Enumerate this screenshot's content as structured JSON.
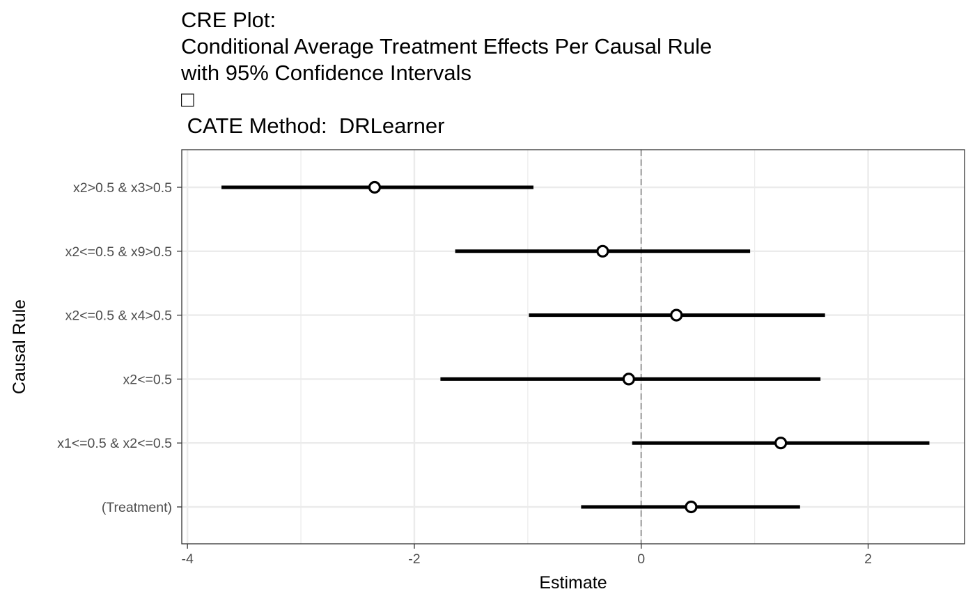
{
  "chart_data": {
    "type": "forest",
    "title_lines": [
      "CRE Plot:",
      "Conditional Average Treatment Effects Per Causal Rule",
      "with 95% Confidence Intervals",
      "□",
      " CATE Method:  DRLearner"
    ],
    "xlabel": "Estimate",
    "ylabel": "Causal Rule",
    "xlim": [
      -4.05,
      2.85
    ],
    "x_ticks": [
      -4,
      -2,
      0,
      2
    ],
    "x_tick_labels": [
      "-4",
      "-2",
      "0",
      "2"
    ],
    "x_minor_ticks": [
      -3,
      -1,
      1
    ],
    "reference_line": 0,
    "grid": true,
    "categories": [
      "x2>0.5 & x3>0.5",
      "x2<=0.5 & x9>0.5",
      "x2<=0.5 & x4>0.5",
      "x2<=0.5",
      "x1<=0.5 & x2<=0.5",
      "(Treatment)"
    ],
    "estimates": [
      -2.35,
      -0.34,
      0.31,
      -0.11,
      1.23,
      0.44
    ],
    "ci_lower": [
      -3.7,
      -1.64,
      -0.99,
      -1.77,
      -0.08,
      -0.53
    ],
    "ci_upper": [
      -0.95,
      0.96,
      1.62,
      1.58,
      2.54,
      1.4
    ],
    "colors": {
      "line": "#000000",
      "point_fill": "#ffffff",
      "grid": "#ebebeb",
      "panel_border": "#333333",
      "reference_line": "#aaaaaa",
      "tick_label": "#4d4d4d"
    }
  }
}
